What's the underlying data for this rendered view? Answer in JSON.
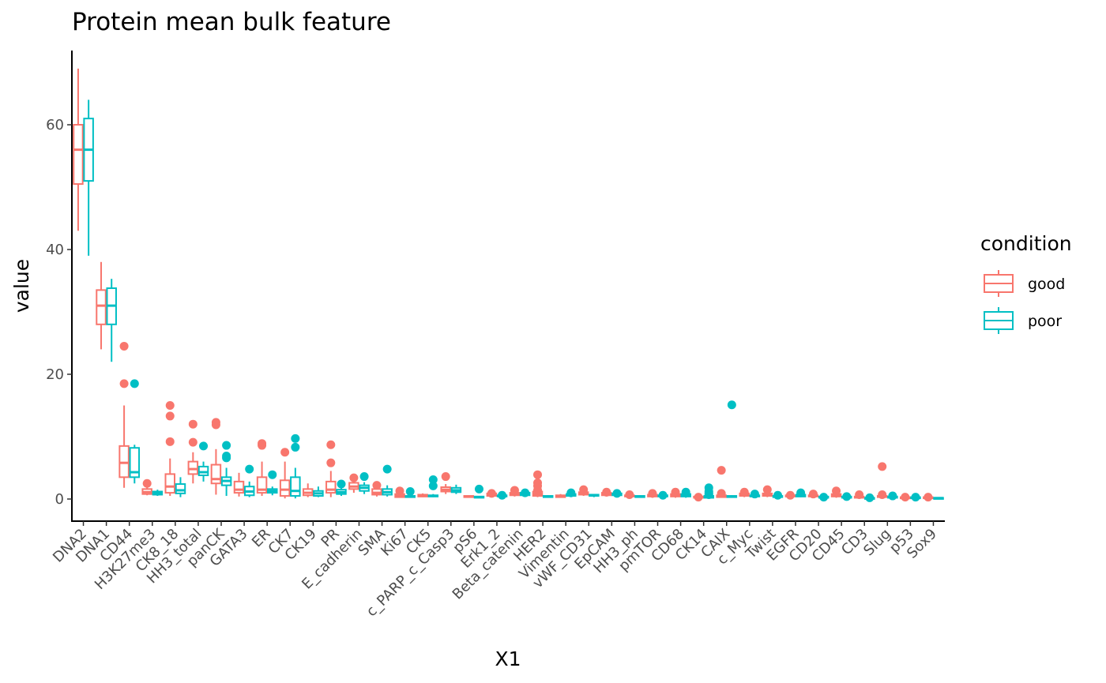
{
  "chart_data": {
    "type": "boxplot",
    "title": "Protein mean bulk feature",
    "xlabel": "X1",
    "ylabel": "value",
    "ylim": [
      -3.5,
      72
    ],
    "yticks": [
      0,
      20,
      40,
      60
    ],
    "grid": false,
    "legend": {
      "title": "condition",
      "position": "right",
      "entries": [
        {
          "label": "good",
          "color": "#F8766D"
        },
        {
          "label": "poor",
          "color": "#00BFC4"
        }
      ]
    },
    "categories": [
      "DNA2",
      "DNA1",
      "CD44",
      "H3K27me3",
      "CK8_18",
      "HH3_total",
      "panCK",
      "GATA3",
      "ER",
      "CK7",
      "CK19",
      "PR",
      "E_cadherin",
      "SMA",
      "Ki67",
      "CK5",
      "c_PARP_c_Casp3",
      "pS6",
      "Erk1_2",
      "Beta_catenin",
      "HER2",
      "Vimentin",
      "vWF_CD31",
      "EpCAM",
      "HH3_ph",
      "pmTOR",
      "CD68",
      "CK14",
      "CAIX",
      "c_Myc",
      "Twist",
      "EGFR",
      "CD20",
      "CD45",
      "CD3",
      "Slug",
      "p53",
      "Sox9"
    ],
    "series": [
      {
        "name": "good",
        "color": "#F8766D",
        "boxes": [
          {
            "min": 43,
            "q1": 50.5,
            "median": 56,
            "q3": 60,
            "max": 69,
            "outliers": []
          },
          {
            "min": 24,
            "q1": 28,
            "median": 31,
            "q3": 33.5,
            "max": 38,
            "outliers": []
          },
          {
            "min": 1.8,
            "q1": 3.5,
            "median": 5.8,
            "q3": 8.5,
            "max": 15,
            "outliers": [
              24.5,
              18.5
            ]
          },
          {
            "min": 0.6,
            "q1": 0.8,
            "median": 1.1,
            "q3": 1.6,
            "max": 2.0,
            "outliers": [
              2.5
            ]
          },
          {
            "min": 0.5,
            "q1": 1,
            "median": 2,
            "q3": 4,
            "max": 6.5,
            "outliers": [
              15,
              13.3,
              9.2
            ]
          },
          {
            "min": 2.5,
            "q1": 4,
            "median": 4.8,
            "q3": 6,
            "max": 7.5,
            "outliers": [
              12,
              9.1
            ]
          },
          {
            "min": 0.7,
            "q1": 2.5,
            "median": 3.2,
            "q3": 5.5,
            "max": 8,
            "outliers": [
              12.3,
              11.9
            ]
          },
          {
            "min": 0.4,
            "q1": 1,
            "median": 1.5,
            "q3": 2.8,
            "max": 4.2,
            "outliers": []
          },
          {
            "min": 0.5,
            "q1": 1,
            "median": 1.5,
            "q3": 3.5,
            "max": 6,
            "outliers": [
              8.9,
              8.6
            ]
          },
          {
            "min": 0.1,
            "q1": 0.5,
            "median": 1.5,
            "q3": 3,
            "max": 6,
            "outliers": [
              7.5
            ]
          },
          {
            "min": 0.3,
            "q1": 0.6,
            "median": 1,
            "q3": 1.6,
            "max": 2.5,
            "outliers": []
          },
          {
            "min": 0.3,
            "q1": 1,
            "median": 1.5,
            "q3": 2.8,
            "max": 4.5,
            "outliers": [
              8.7,
              5.8
            ]
          },
          {
            "min": 1,
            "q1": 1.6,
            "median": 2,
            "q3": 2.6,
            "max": 3,
            "outliers": [
              3.4
            ]
          },
          {
            "min": 0.4,
            "q1": 0.7,
            "median": 1,
            "q3": 1.6,
            "max": 2,
            "outliers": [
              2.2
            ]
          },
          {
            "min": 0.2,
            "q1": 0.3,
            "median": 0.5,
            "q3": 0.8,
            "max": 1,
            "outliers": [
              1.3
            ]
          },
          {
            "min": 0.3,
            "q1": 0.4,
            "median": 0.5,
            "q3": 0.7,
            "max": 0.9,
            "outliers": []
          },
          {
            "min": 0.8,
            "q1": 1.2,
            "median": 1.5,
            "q3": 1.9,
            "max": 2.4,
            "outliers": [
              3.6
            ]
          },
          {
            "min": 0.2,
            "q1": 0.3,
            "median": 0.4,
            "q3": 0.5,
            "max": 0.6,
            "outliers": []
          },
          {
            "min": 0.3,
            "q1": 0.5,
            "median": 0.7,
            "q3": 0.9,
            "max": 1.1,
            "outliers": [
              0.9
            ]
          },
          {
            "min": 0.4,
            "q1": 0.6,
            "median": 0.8,
            "q3": 1,
            "max": 1.3,
            "outliers": [
              1.4
            ]
          },
          {
            "min": 0.3,
            "q1": 0.5,
            "median": 0.8,
            "q3": 1.2,
            "max": 1.5,
            "outliers": [
              3.9,
              2.6,
              2.1,
              1.4
            ]
          },
          {
            "min": 0.2,
            "q1": 0.3,
            "median": 0.4,
            "q3": 0.6,
            "max": 0.8,
            "outliers": []
          },
          {
            "min": 0.5,
            "q1": 0.7,
            "median": 0.9,
            "q3": 1.1,
            "max": 1.3,
            "outliers": [
              1.5
            ]
          },
          {
            "min": 0.4,
            "q1": 0.6,
            "median": 0.8,
            "q3": 1,
            "max": 1.1,
            "outliers": [
              1.1
            ]
          },
          {
            "min": 0.3,
            "q1": 0.4,
            "median": 0.5,
            "q3": 0.6,
            "max": 0.7,
            "outliers": [
              0.7
            ]
          },
          {
            "min": 0.2,
            "q1": 0.4,
            "median": 0.5,
            "q3": 0.7,
            "max": 0.8,
            "outliers": [
              0.9
            ]
          },
          {
            "min": 0.2,
            "q1": 0.4,
            "median": 0.6,
            "q3": 0.8,
            "max": 1,
            "outliers": [
              1.1
            ]
          },
          {
            "min": 0.1,
            "q1": 0.2,
            "median": 0.3,
            "q3": 0.4,
            "max": 0.5,
            "outliers": [
              0.3
            ]
          },
          {
            "min": 0.2,
            "q1": 0.3,
            "median": 0.5,
            "q3": 0.6,
            "max": 0.8,
            "outliers": [
              4.6,
              0.9
            ]
          },
          {
            "min": 0.3,
            "q1": 0.5,
            "median": 0.7,
            "q3": 0.9,
            "max": 1.0,
            "outliers": [
              1.1
            ]
          },
          {
            "min": 0.3,
            "q1": 0.5,
            "median": 0.7,
            "q3": 0.9,
            "max": 1.1,
            "outliers": [
              1.5
            ]
          },
          {
            "min": 0.2,
            "q1": 0.4,
            "median": 0.5,
            "q3": 0.6,
            "max": 0.7,
            "outliers": [
              0.6
            ]
          },
          {
            "min": 0.2,
            "q1": 0.4,
            "median": 0.5,
            "q3": 0.6,
            "max": 0.7,
            "outliers": [
              0.8
            ]
          },
          {
            "min": 0.2,
            "q1": 0.4,
            "median": 0.6,
            "q3": 0.8,
            "max": 1.0,
            "outliers": [
              1.3
            ]
          },
          {
            "min": 0.1,
            "q1": 0.2,
            "median": 0.3,
            "q3": 0.4,
            "max": 0.5,
            "outliers": [
              0.7
            ]
          },
          {
            "min": 0.2,
            "q1": 0.3,
            "median": 0.4,
            "q3": 0.5,
            "max": 0.6,
            "outliers": [
              5.2,
              0.7
            ]
          },
          {
            "min": 0.0,
            "q1": 0.1,
            "median": 0.2,
            "q3": 0.3,
            "max": 0.4,
            "outliers": [
              0.3
            ]
          },
          {
            "min": 0.1,
            "q1": 0.15,
            "median": 0.2,
            "q3": 0.3,
            "max": 0.35,
            "outliers": [
              0.3
            ]
          }
        ]
      },
      {
        "name": "poor",
        "color": "#00BFC4",
        "boxes": [
          {
            "min": 39,
            "q1": 51,
            "median": 56,
            "q3": 61,
            "max": 64,
            "outliers": []
          },
          {
            "min": 22,
            "q1": 28,
            "median": 31,
            "q3": 33.8,
            "max": 35.3,
            "outliers": []
          },
          {
            "min": 2.5,
            "q1": 3.5,
            "median": 4.3,
            "q3": 8.2,
            "max": 8.7,
            "outliers": [
              18.5
            ]
          },
          {
            "min": 0.5,
            "q1": 0.7,
            "median": 0.9,
            "q3": 1.2,
            "max": 1.5,
            "outliers": []
          },
          {
            "min": 0.3,
            "q1": 0.9,
            "median": 1.4,
            "q3": 2.4,
            "max": 3.5,
            "outliers": []
          },
          {
            "min": 2.8,
            "q1": 3.8,
            "median": 4.3,
            "q3": 5.2,
            "max": 6,
            "outliers": [
              8.5
            ]
          },
          {
            "min": 0.5,
            "q1": 2.2,
            "median": 2.9,
            "q3": 3.5,
            "max": 5,
            "outliers": [
              8.6,
              6.9,
              6.6
            ]
          },
          {
            "min": 0.3,
            "q1": 0.6,
            "median": 1.2,
            "q3": 2,
            "max": 2.8,
            "outliers": [
              4.8
            ]
          },
          {
            "min": 0.6,
            "q1": 1,
            "median": 1.3,
            "q3": 1.6,
            "max": 2,
            "outliers": [
              3.9
            ]
          },
          {
            "min": 0.1,
            "q1": 0.5,
            "median": 1.3,
            "q3": 3.5,
            "max": 5,
            "outliers": [
              9.7,
              8.3
            ]
          },
          {
            "min": 0.3,
            "q1": 0.5,
            "median": 0.9,
            "q3": 1.3,
            "max": 2,
            "outliers": []
          },
          {
            "min": 0.5,
            "q1": 0.8,
            "median": 1.1,
            "q3": 1.5,
            "max": 2.2,
            "outliers": [
              2.4
            ]
          },
          {
            "min": 0.8,
            "q1": 1.3,
            "median": 1.8,
            "q3": 2.2,
            "max": 2.7,
            "outliers": [
              3.6
            ]
          },
          {
            "min": 0.4,
            "q1": 0.7,
            "median": 1.1,
            "q3": 1.6,
            "max": 2.2,
            "outliers": [
              4.8
            ]
          },
          {
            "min": 0.2,
            "q1": 0.3,
            "median": 0.4,
            "q3": 0.5,
            "max": 0.6,
            "outliers": [
              1.2
            ]
          },
          {
            "min": 0.3,
            "q1": 0.4,
            "median": 0.5,
            "q3": 0.6,
            "max": 0.8,
            "outliers": [
              3.1,
              2.1
            ]
          },
          {
            "min": 0.8,
            "q1": 1.1,
            "median": 1.4,
            "q3": 1.8,
            "max": 2.3,
            "outliers": []
          },
          {
            "min": 0.2,
            "q1": 0.3,
            "median": 0.3,
            "q3": 0.4,
            "max": 0.5,
            "outliers": [
              1.6
            ]
          },
          {
            "min": 0.3,
            "q1": 0.4,
            "median": 0.5,
            "q3": 0.6,
            "max": 0.7,
            "outliers": [
              0.6
            ]
          },
          {
            "min": 0.4,
            "q1": 0.6,
            "median": 0.8,
            "q3": 1,
            "max": 1.2,
            "outliers": [
              1.0
            ]
          },
          {
            "min": 0.2,
            "q1": 0.3,
            "median": 0.4,
            "q3": 0.5,
            "max": 0.6,
            "outliers": []
          },
          {
            "min": 0.3,
            "q1": 0.5,
            "median": 0.6,
            "q3": 0.8,
            "max": 0.9,
            "outliers": [
              1.0
            ]
          },
          {
            "min": 0.3,
            "q1": 0.5,
            "median": 0.6,
            "q3": 0.7,
            "max": 0.8,
            "outliers": []
          },
          {
            "min": 0.4,
            "q1": 0.6,
            "median": 0.7,
            "q3": 0.9,
            "max": 1.0,
            "outliers": [
              0.9
            ]
          },
          {
            "min": 0.2,
            "q1": 0.3,
            "median": 0.4,
            "q3": 0.5,
            "max": 0.6,
            "outliers": []
          },
          {
            "min": 0.3,
            "q1": 0.4,
            "median": 0.5,
            "q3": 0.6,
            "max": 0.7,
            "outliers": [
              0.6
            ]
          },
          {
            "min": 0.2,
            "q1": 0.4,
            "median": 0.6,
            "q3": 0.8,
            "max": 1.0,
            "outliers": [
              1.1
            ]
          },
          {
            "min": 0.1,
            "q1": 0.2,
            "median": 0.3,
            "q3": 0.5,
            "max": 0.8,
            "outliers": [
              1.8,
              1.2,
              0.9,
              0.7
            ]
          },
          {
            "min": 0.2,
            "q1": 0.3,
            "median": 0.4,
            "q3": 0.5,
            "max": 0.6,
            "outliers": [
              15.1
            ]
          },
          {
            "min": 0.3,
            "q1": 0.4,
            "median": 0.5,
            "q3": 0.6,
            "max": 0.7,
            "outliers": [
              0.8
            ]
          },
          {
            "min": 0.2,
            "q1": 0.3,
            "median": 0.4,
            "q3": 0.5,
            "max": 0.6,
            "outliers": [
              0.6
            ]
          },
          {
            "min": 0.3,
            "q1": 0.4,
            "median": 0.5,
            "q3": 0.7,
            "max": 0.8,
            "outliers": [
              1.0
            ]
          },
          {
            "min": 0.1,
            "q1": 0.2,
            "median": 0.3,
            "q3": 0.4,
            "max": 0.5,
            "outliers": [
              0.3
            ]
          },
          {
            "min": 0.1,
            "q1": 0.2,
            "median": 0.3,
            "q3": 0.4,
            "max": 0.5,
            "outliers": [
              0.4
            ]
          },
          {
            "min": 0.0,
            "q1": 0.1,
            "median": 0.15,
            "q3": 0.2,
            "max": 0.3,
            "outliers": [
              0.2
            ]
          },
          {
            "min": 0.1,
            "q1": 0.2,
            "median": 0.3,
            "q3": 0.4,
            "max": 0.5,
            "outliers": [
              0.5
            ]
          },
          {
            "min": 0.1,
            "q1": 0.15,
            "median": 0.2,
            "q3": 0.3,
            "max": 0.35,
            "outliers": [
              0.3
            ]
          },
          {
            "min": 0.05,
            "q1": 0.1,
            "median": 0.15,
            "q3": 0.2,
            "max": 0.25,
            "outliers": []
          }
        ]
      }
    ]
  }
}
